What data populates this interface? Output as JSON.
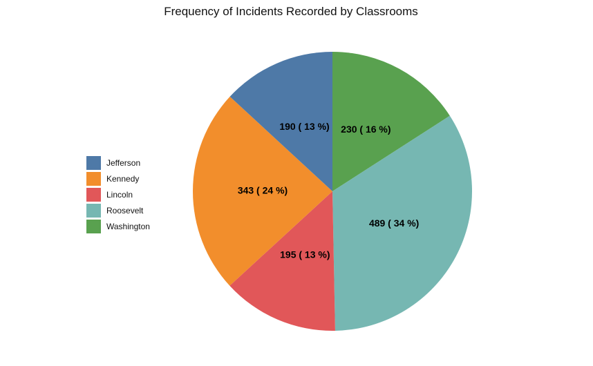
{
  "chart_data": {
    "type": "pie",
    "title": "Frequency of Incidents Recorded by Classrooms",
    "legend_position": "left",
    "slices": [
      {
        "name": "Jefferson",
        "value": 190,
        "label": "190 ( 13 %)",
        "color": "#4e79a7"
      },
      {
        "name": "Kennedy",
        "value": 343,
        "label": "343 ( 24 %)",
        "color": "#f28e2c"
      },
      {
        "name": "Lincoln",
        "value": 195,
        "label": "195 ( 13 %)",
        "color": "#e15759"
      },
      {
        "name": "Roosevelt",
        "value": 489,
        "label": "489 ( 34 %)",
        "color": "#76b7b2"
      },
      {
        "name": "Washington",
        "value": 230,
        "label": "230 ( 16 %)",
        "color": "#59a14f"
      }
    ]
  }
}
